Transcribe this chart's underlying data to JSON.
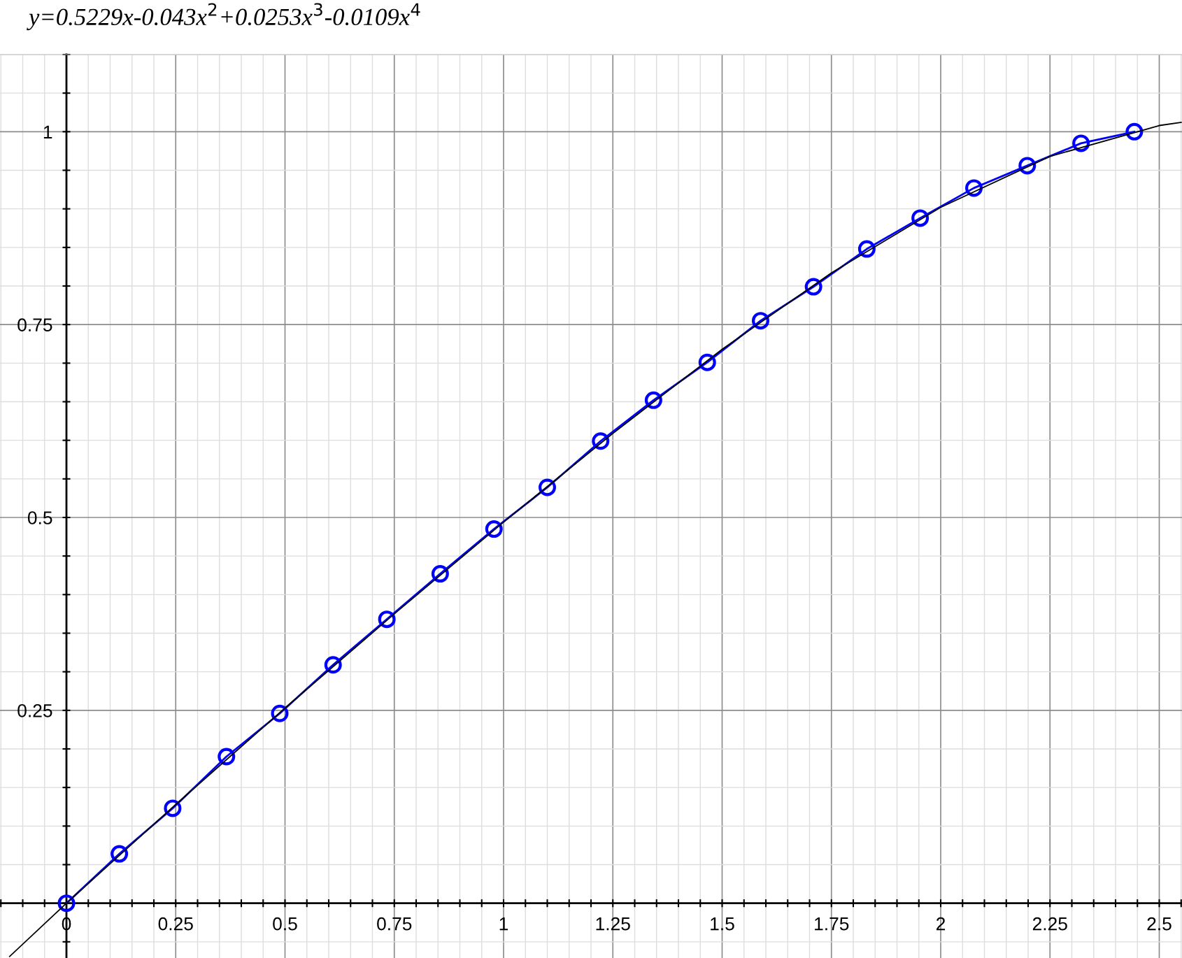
{
  "chart_data": {
    "type": "line",
    "title": "y=0.5229x-0.043x$^{2}$+0.0253x$^{3}$-0.0109x$^{4}$",
    "xlim": [
      -0.152,
      2.552
    ],
    "ylim": [
      -0.071,
      1.1
    ],
    "xticks": [
      {
        "value": -0.15,
        "label": null
      },
      {
        "value": -0.1,
        "label": null
      },
      {
        "value": -0.05,
        "label": null
      },
      0,
      {
        "value": 0.05,
        "label": null
      },
      {
        "value": 0.1,
        "label": null
      },
      {
        "value": 0.15,
        "label": null
      },
      {
        "value": 0.2,
        "label": null
      },
      0.25,
      {
        "value": 0.3,
        "label": null
      },
      {
        "value": 0.35,
        "label": null
      },
      {
        "value": 0.4,
        "label": null
      },
      {
        "value": 0.45,
        "label": null
      },
      0.5,
      {
        "value": 0.55,
        "label": null
      },
      {
        "value": 0.6,
        "label": null
      },
      {
        "value": 0.65,
        "label": null
      },
      {
        "value": 0.7,
        "label": null
      },
      0.75,
      {
        "value": 0.8,
        "label": null
      },
      {
        "value": 0.85,
        "label": null
      },
      {
        "value": 0.9,
        "label": null
      },
      {
        "value": 0.95,
        "label": null
      },
      1,
      {
        "value": 1.05,
        "label": null
      },
      {
        "value": 1.1,
        "label": null
      },
      {
        "value": 1.15,
        "label": null
      },
      {
        "value": 1.2,
        "label": null
      },
      1.25,
      {
        "value": 1.3,
        "label": null
      },
      {
        "value": 1.35,
        "label": null
      },
      {
        "value": 1.4,
        "label": null
      },
      {
        "value": 1.45,
        "label": null
      },
      1.5,
      {
        "value": 1.55,
        "label": null
      },
      {
        "value": 1.6,
        "label": null
      },
      {
        "value": 1.65,
        "label": null
      },
      {
        "value": 1.7,
        "label": null
      },
      1.75,
      {
        "value": 1.8,
        "label": null
      },
      {
        "value": 1.85,
        "label": null
      },
      {
        "value": 1.9,
        "label": null
      },
      {
        "value": 1.95,
        "label": null
      },
      2,
      {
        "value": 2.05,
        "label": null
      },
      {
        "value": 2.1,
        "label": null
      },
      {
        "value": 2.15,
        "label": null
      },
      {
        "value": 2.2,
        "label": null
      },
      2.25,
      {
        "value": 2.3,
        "label": null
      },
      {
        "value": 2.35,
        "label": null
      },
      {
        "value": 2.4,
        "label": null
      },
      {
        "value": 2.45,
        "label": null
      },
      2.5,
      {
        "value": 2.55,
        "label": null
      }
    ],
    "yticks": [
      {
        "value": -0.05,
        "label": null
      },
      {
        "value": 0,
        "label": null
      },
      {
        "value": 0.05,
        "label": null
      },
      {
        "value": 0.1,
        "label": null
      },
      {
        "value": 0.15,
        "label": null
      },
      {
        "value": 0.2,
        "label": null
      },
      0.25,
      {
        "value": 0.3,
        "label": null
      },
      {
        "value": 0.35,
        "label": null
      },
      {
        "value": 0.4,
        "label": null
      },
      {
        "value": 0.45,
        "label": null
      },
      0.5,
      {
        "value": 0.55,
        "label": null
      },
      {
        "value": 0.6,
        "label": null
      },
      {
        "value": 0.65,
        "label": null
      },
      {
        "value": 0.7,
        "label": null
      },
      0.75,
      {
        "value": 0.8,
        "label": null
      },
      {
        "value": 0.85,
        "label": null
      },
      {
        "value": 0.9,
        "label": null
      },
      {
        "value": 0.95,
        "label": null
      },
      1,
      {
        "value": 1.05,
        "label": null
      },
      {
        "value": 1.1,
        "label": null
      }
    ],
    "grid": true,
    "series": [
      {
        "color": "#000000",
        "marker": "none",
        "x": [
          -0.13,
          0,
          0.25,
          0.5,
          0.75,
          1,
          1.25,
          1.5,
          1.75,
          2,
          2.25,
          2.5,
          2.55
        ],
        "values": [
          -0.069,
          0,
          0.128,
          0.253,
          0.375,
          0.494,
          0.609,
          0.718,
          0.817,
          0.902,
          0.968,
          1.008,
          1.012
        ]
      },
      {
        "color": "#0000ff",
        "marker": "circle",
        "x": [
          0,
          0.121,
          0.243,
          0.366,
          0.488,
          0.61,
          0.733,
          0.855,
          0.978,
          1.1,
          1.222,
          1.343,
          1.466,
          1.588,
          1.709,
          1.831,
          1.953,
          2.076,
          2.198,
          2.321,
          2.443
        ],
        "values": [
          0,
          0.064,
          0.123,
          0.19,
          0.246,
          0.309,
          0.368,
          0.427,
          0.485,
          0.539,
          0.599,
          0.652,
          0.701,
          0.755,
          0.799,
          0.848,
          0.888,
          0.927,
          0.956,
          0.985,
          1.0
        ]
      }
    ]
  }
}
